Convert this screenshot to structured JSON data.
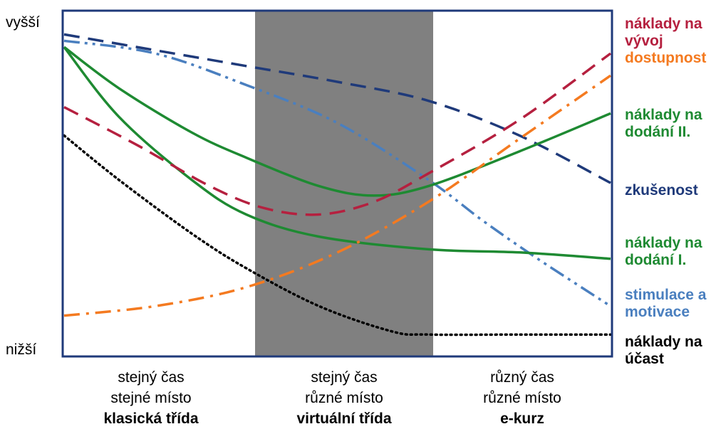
{
  "chart_data": {
    "type": "line",
    "y_axis_labels": {
      "top": "vyšší",
      "bottom": "nižší"
    },
    "x_categories": [
      {
        "line1": "stejný čas",
        "line2": "stejné místo",
        "line3": "klasická třída",
        "shaded": false
      },
      {
        "line1": "stejný čas",
        "line2": "různé místo",
        "line3": "virtuální třída",
        "shaded": true
      },
      {
        "line1": "různý čas",
        "line2": "různé místo",
        "line3": "e-kurz",
        "shaded": false
      }
    ],
    "x_range": [
      0,
      3
    ],
    "y_range": [
      0,
      1
    ],
    "series": [
      {
        "name": "zkušenost",
        "label_lines": [
          "zkušenost"
        ],
        "color": "#1f3a7a",
        "style": "dashed",
        "points": [
          [
            0,
            0.99
          ],
          [
            0.5,
            0.94
          ],
          [
            1,
            0.89
          ],
          [
            1.5,
            0.84
          ],
          [
            2,
            0.78
          ],
          [
            2.5,
            0.67
          ],
          [
            3,
            0.52
          ]
        ]
      },
      {
        "name": "stimulace a motivace",
        "label_lines": [
          "stimulace a",
          "motivace"
        ],
        "color": "#4a7fbf",
        "style": "dashdotdot",
        "points": [
          [
            0,
            0.97
          ],
          [
            0.5,
            0.93
          ],
          [
            1,
            0.83
          ],
          [
            1.5,
            0.71
          ],
          [
            2,
            0.53
          ],
          [
            2.3,
            0.4
          ],
          [
            2.6,
            0.28
          ],
          [
            3,
            0.13
          ]
        ]
      },
      {
        "name": "náklady na dodání II.",
        "label_lines": [
          "náklady na",
          "dodání II."
        ],
        "color": "#1e8a32",
        "style": "solid",
        "points": [
          [
            0,
            0.95
          ],
          [
            0.3,
            0.82
          ],
          [
            0.7,
            0.68
          ],
          [
            1,
            0.6
          ],
          [
            1.4,
            0.51
          ],
          [
            1.7,
            0.48
          ],
          [
            2,
            0.51
          ],
          [
            2.5,
            0.62
          ],
          [
            3,
            0.74
          ]
        ]
      },
      {
        "name": "náklady na dodání I.",
        "label_lines": [
          "náklady na",
          "dodání I."
        ],
        "color": "#1e8a32",
        "style": "solid",
        "points": [
          [
            0,
            0.95
          ],
          [
            0.3,
            0.73
          ],
          [
            0.7,
            0.53
          ],
          [
            1,
            0.42
          ],
          [
            1.4,
            0.35
          ],
          [
            2,
            0.31
          ],
          [
            2.5,
            0.3
          ],
          [
            3,
            0.28
          ]
        ]
      },
      {
        "name": "náklady na vývoj",
        "label_lines": [
          "náklady na",
          "vývoj"
        ],
        "color": "#b5203f",
        "style": "dashed",
        "points": [
          [
            0,
            0.76
          ],
          [
            0.4,
            0.64
          ],
          [
            0.8,
            0.51
          ],
          [
            1.1,
            0.44
          ],
          [
            1.4,
            0.42
          ],
          [
            1.7,
            0.46
          ],
          [
            2,
            0.55
          ],
          [
            2.5,
            0.72
          ],
          [
            3,
            0.93
          ]
        ]
      },
      {
        "name": "dostupnost",
        "label_lines": [
          "dostupnost"
        ],
        "color": "#f47a20",
        "style": "dashdot",
        "points": [
          [
            0,
            0.1
          ],
          [
            0.5,
            0.13
          ],
          [
            1,
            0.19
          ],
          [
            1.5,
            0.3
          ],
          [
            2,
            0.46
          ],
          [
            2.5,
            0.66
          ],
          [
            3,
            0.86
          ]
        ]
      },
      {
        "name": "náklady na účast",
        "label_lines": [
          "náklady na",
          "účast"
        ],
        "color": "#000000",
        "style": "dotted",
        "points": [
          [
            0,
            0.67
          ],
          [
            0.3,
            0.53
          ],
          [
            0.7,
            0.36
          ],
          [
            1,
            0.25
          ],
          [
            1.4,
            0.13
          ],
          [
            1.8,
            0.05
          ],
          [
            2,
            0.04
          ],
          [
            2.5,
            0.04
          ],
          [
            3,
            0.04
          ]
        ]
      }
    ],
    "legend_placement": "right",
    "grid": false
  }
}
